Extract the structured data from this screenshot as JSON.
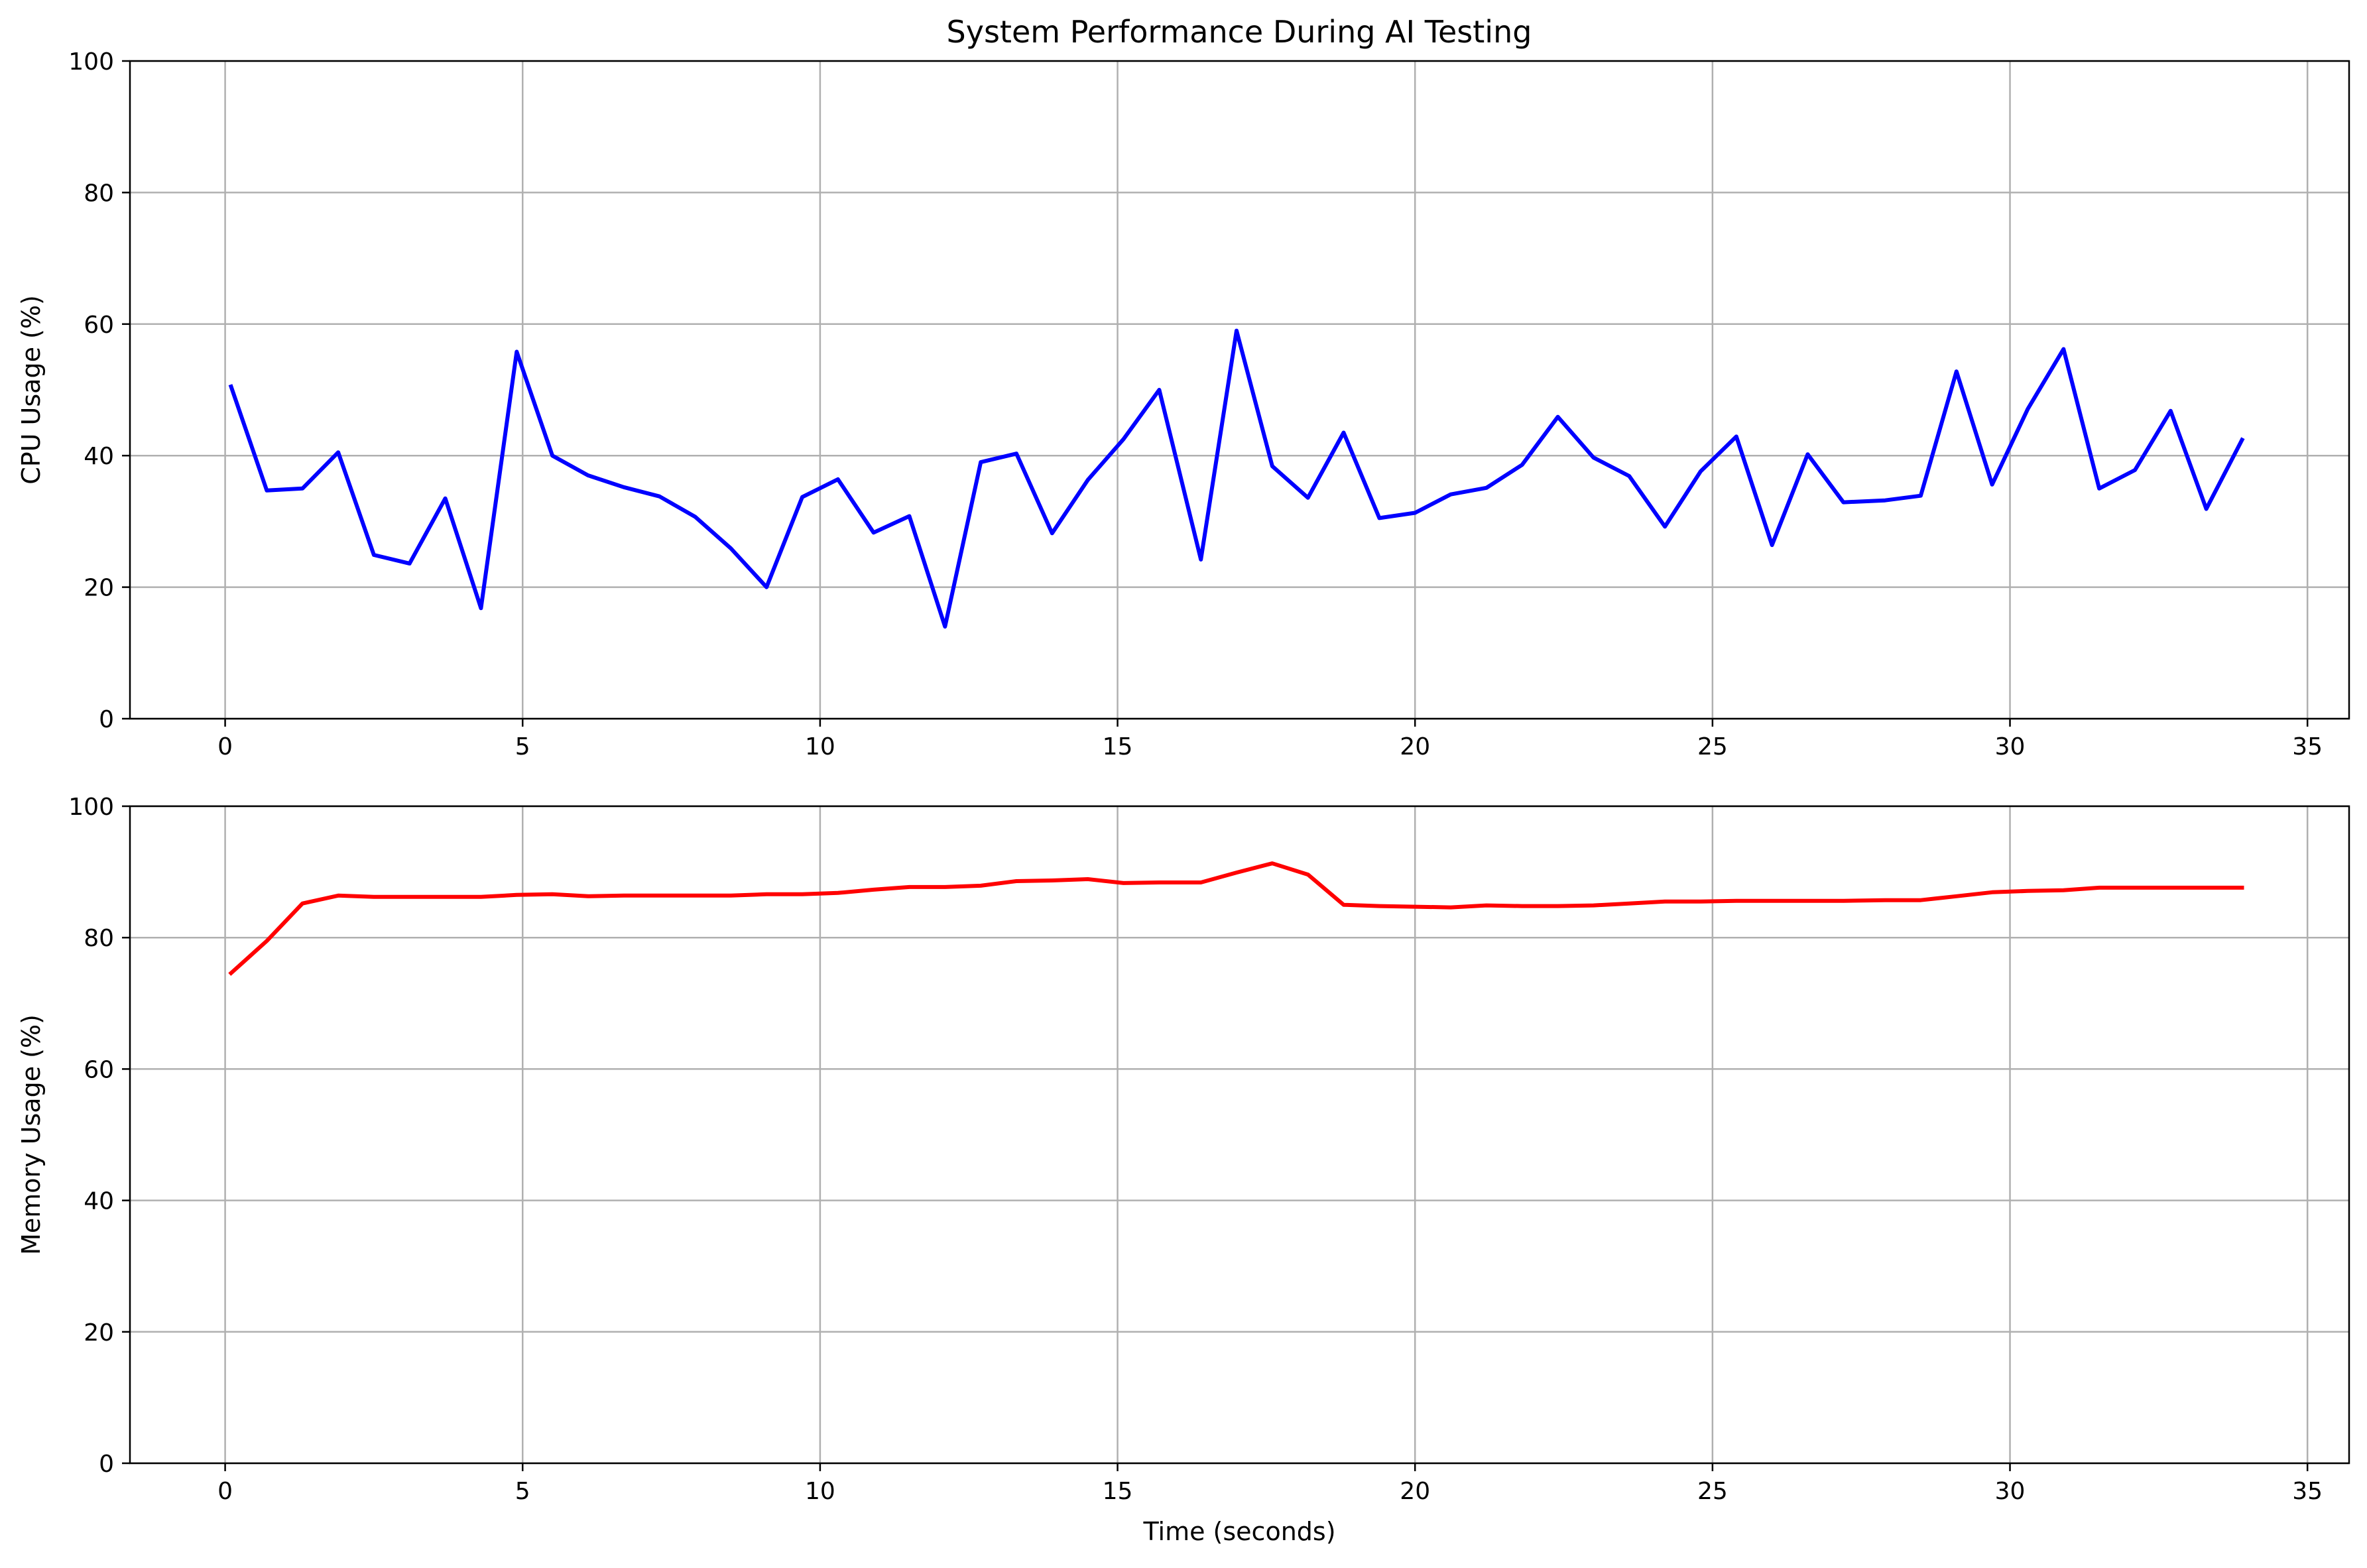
{
  "title": "System Performance During AI Testing",
  "chart_data": [
    {
      "type": "line",
      "xlabel": "",
      "ylabel": "CPU Usage (%)",
      "xlim": [
        -1.6,
        35.7
      ],
      "ylim": [
        0,
        100
      ],
      "xticks": [
        0,
        5,
        10,
        15,
        20,
        25,
        30,
        35
      ],
      "yticks": [
        0,
        20,
        40,
        60,
        80,
        100
      ],
      "grid": true,
      "series": [
        {
          "color": "#0000ff",
          "x": [
            0.1,
            0.7,
            1.3,
            1.9,
            2.5,
            3.1,
            3.7,
            4.3,
            4.9,
            5.5,
            6.1,
            6.7,
            7.3,
            7.9,
            8.5,
            9.1,
            9.7,
            10.3,
            10.9,
            11.5,
            12.1,
            12.7,
            13.3,
            13.9,
            14.5,
            15.1,
            15.7,
            16.4,
            17.0,
            17.6,
            18.2,
            18.8,
            19.4,
            20.0,
            20.6,
            21.2,
            21.8,
            22.4,
            23.0,
            23.6,
            24.2,
            24.8,
            25.4,
            26.0,
            26.6,
            27.2,
            27.9,
            28.5,
            29.1,
            29.7,
            30.3,
            30.9,
            31.5,
            32.1,
            32.7,
            33.3,
            33.9
          ],
          "values": [
            50.5,
            34.7,
            35.0,
            40.5,
            24.9,
            23.6,
            33.5,
            16.8,
            55.8,
            40.0,
            37.0,
            35.2,
            33.8,
            30.7,
            25.9,
            20.0,
            33.7,
            36.4,
            28.3,
            30.8,
            14.0,
            39.0,
            40.3,
            28.2,
            36.3,
            42.5,
            50.0,
            24.2,
            59.0,
            38.4,
            33.6,
            43.5,
            30.5,
            31.3,
            34.1,
            35.1,
            38.6,
            45.9,
            39.7,
            36.9,
            29.2,
            37.6,
            42.9,
            26.4,
            40.2,
            32.9,
            33.2,
            33.9,
            52.8,
            35.6,
            47.1,
            56.2,
            35.0,
            37.8,
            46.8,
            31.9,
            42.4
          ]
        }
      ]
    },
    {
      "type": "line",
      "xlabel": "Time (seconds)",
      "ylabel": "Memory Usage (%)",
      "xlim": [
        -1.6,
        35.7
      ],
      "ylim": [
        0,
        100
      ],
      "xticks": [
        0,
        5,
        10,
        15,
        20,
        25,
        30,
        35
      ],
      "yticks": [
        0,
        20,
        40,
        60,
        80,
        100
      ],
      "grid": true,
      "series": [
        {
          "color": "#ff0000",
          "x": [
            0.1,
            0.7,
            1.3,
            1.9,
            2.5,
            3.1,
            3.7,
            4.3,
            4.9,
            5.5,
            6.1,
            6.7,
            7.3,
            7.9,
            8.5,
            9.1,
            9.7,
            10.3,
            10.9,
            11.5,
            12.1,
            12.7,
            13.3,
            13.9,
            14.5,
            15.1,
            15.7,
            16.4,
            17.0,
            17.6,
            18.2,
            18.8,
            19.4,
            20.0,
            20.6,
            21.2,
            21.8,
            22.4,
            23.0,
            23.6,
            24.2,
            24.8,
            25.4,
            26.0,
            26.6,
            27.2,
            27.9,
            28.5,
            29.1,
            29.7,
            30.3,
            30.9,
            31.5,
            32.1,
            32.7,
            33.3,
            33.9
          ],
          "values": [
            74.6,
            79.5,
            85.2,
            86.4,
            86.2,
            86.2,
            86.2,
            86.2,
            86.5,
            86.6,
            86.3,
            86.4,
            86.4,
            86.4,
            86.4,
            86.6,
            86.6,
            86.8,
            87.3,
            87.7,
            87.7,
            87.9,
            88.6,
            88.7,
            88.9,
            88.3,
            88.4,
            88.4,
            89.9,
            91.3,
            89.6,
            85.0,
            84.8,
            84.7,
            84.6,
            84.9,
            84.8,
            84.8,
            84.9,
            85.2,
            85.5,
            85.5,
            85.6,
            85.6,
            85.6,
            85.6,
            85.7,
            85.7,
            86.3,
            86.9,
            87.1,
            87.2,
            87.6,
            87.6,
            87.6,
            87.6,
            87.6
          ]
        }
      ]
    }
  ]
}
